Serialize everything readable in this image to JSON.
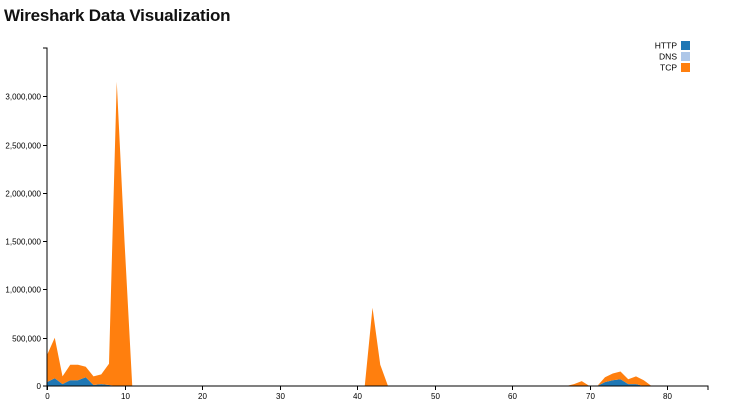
{
  "page": {
    "title": "Wireshark Data Visualization"
  },
  "chart_data": {
    "type": "area",
    "stacked": true,
    "title": "",
    "xlabel": "",
    "ylabel": "",
    "xlim": [
      0,
      85
    ],
    "ylim": [
      0,
      3500000
    ],
    "x_ticks": [
      0,
      10,
      20,
      30,
      40,
      50,
      60,
      70,
      80
    ],
    "y_ticks": [
      500000,
      1000000,
      1500000,
      2000000,
      2500000,
      3000000
    ],
    "y_tick_labels": [
      "500,000",
      "1,000,000",
      "1,500,000",
      "2,000,000",
      "2,500,000",
      "3,000,000"
    ],
    "x": [
      0,
      1,
      2,
      3,
      4,
      5,
      6,
      7,
      8,
      9,
      10,
      11,
      12,
      40,
      41,
      42,
      43,
      44,
      45,
      67,
      68,
      69,
      70,
      71,
      72,
      73,
      74,
      75,
      76,
      77,
      78,
      79
    ],
    "legend_position": "top-right",
    "grid": false,
    "series": [
      {
        "name": "HTTP",
        "color": "#1f77b4",
        "values": [
          40000,
          80000,
          20000,
          60000,
          60000,
          90000,
          10000,
          20000,
          10000,
          0,
          0,
          0,
          0,
          0,
          0,
          0,
          0,
          0,
          0,
          0,
          0,
          0,
          0,
          0,
          40000,
          60000,
          70000,
          20000,
          20000,
          0,
          0,
          0
        ]
      },
      {
        "name": "DNS",
        "color": "#aec7e8",
        "values": [
          0,
          0,
          0,
          0,
          0,
          0,
          0,
          0,
          0,
          0,
          0,
          0,
          0,
          0,
          0,
          0,
          0,
          0,
          0,
          0,
          0,
          0,
          0,
          0,
          0,
          0,
          0,
          0,
          0,
          0,
          0,
          0
        ]
      },
      {
        "name": "TCP",
        "color": "#ff7f0e",
        "values": [
          280000,
          420000,
          80000,
          160000,
          160000,
          110000,
          90000,
          100000,
          220000,
          3150000,
          1500000,
          0,
          0,
          0,
          0,
          810000,
          220000,
          0,
          0,
          0,
          20000,
          50000,
          0,
          0,
          50000,
          70000,
          80000,
          50000,
          80000,
          60000,
          0,
          0
        ]
      }
    ]
  }
}
